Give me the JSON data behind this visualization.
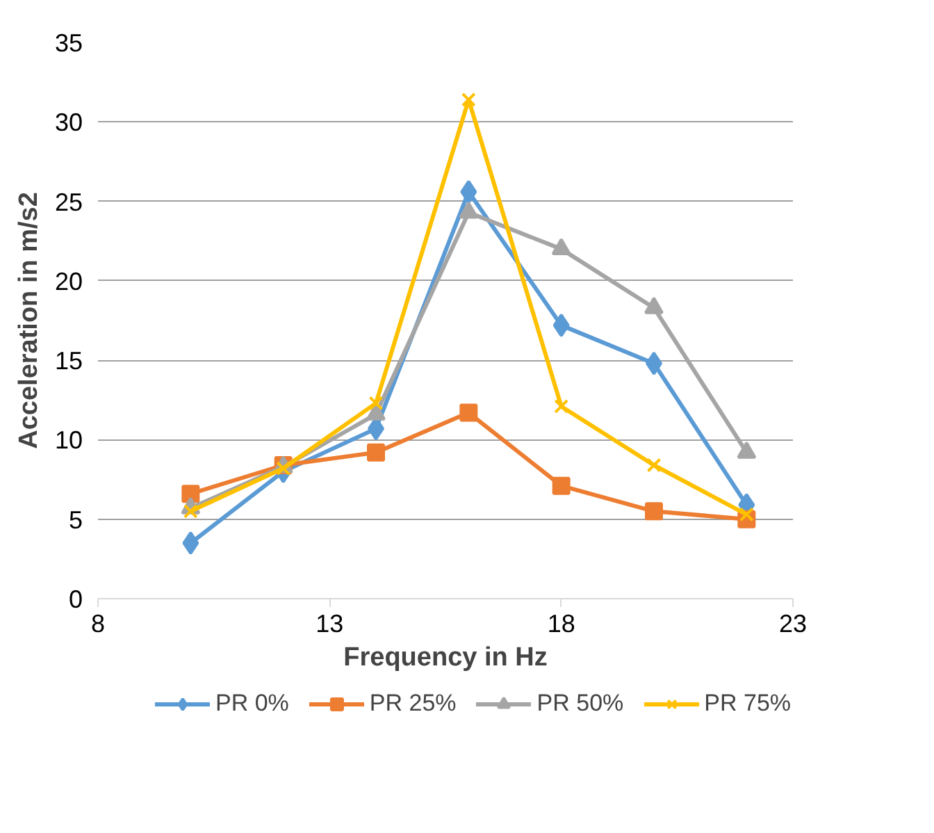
{
  "chart_data": {
    "type": "line",
    "xlabel": "Frequency in Hz",
    "ylabel": "Acceleration in m/s2",
    "x": [
      10,
      12,
      14,
      16,
      18,
      20,
      22
    ],
    "xlim": [
      8,
      23
    ],
    "xticks": [
      8,
      13,
      18,
      23
    ],
    "ylim": [
      0,
      35
    ],
    "yticks": [
      0,
      5,
      10,
      15,
      20,
      25,
      30,
      35
    ],
    "grid": "y",
    "legend": "bottom",
    "line_style": "solid",
    "series": [
      {
        "name": "PR 0%",
        "color": "#5b9bd5",
        "marker": "diamond",
        "values": [
          3.5,
          8.0,
          10.7,
          25.6,
          17.2,
          14.8,
          5.9
        ]
      },
      {
        "name": "PR 25%",
        "color": "#ed7d31",
        "marker": "square",
        "values": [
          6.6,
          8.4,
          9.2,
          11.7,
          7.1,
          5.5,
          5.0
        ]
      },
      {
        "name": "PR 50%",
        "color": "#a5a5a5",
        "marker": "triangle",
        "values": [
          5.7,
          8.3,
          11.6,
          24.3,
          22.0,
          18.3,
          9.2
        ]
      },
      {
        "name": "PR 75%",
        "color": "#ffc000",
        "marker": "cross",
        "values": [
          5.5,
          8.2,
          12.3,
          31.4,
          12.1,
          8.4,
          5.3
        ]
      }
    ]
  }
}
